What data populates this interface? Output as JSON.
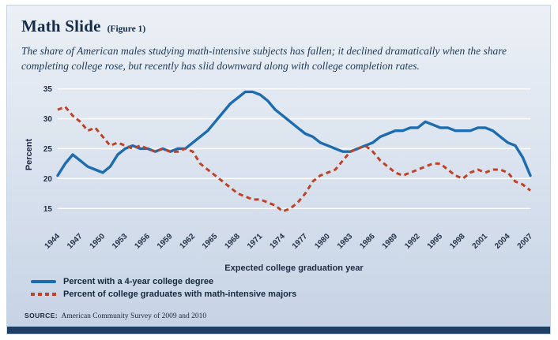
{
  "header": {
    "title": "Math Slide",
    "figure_label": "(Figure 1)",
    "subtitle": "The share of American males studying math-intensive subjects has fallen; it declined  dramatically when the share completing college rose, but recently has slid downward along with college completion rates."
  },
  "source": {
    "label": "SOURCE:",
    "text": "American Community Survey of 2009 and 2010"
  },
  "colors": {
    "degree_line": "#1e6cb0",
    "math_line": "#bf4226",
    "panel_top": "#ecf0f6",
    "panel_bottom": "#c6d3e5",
    "bottom_bar": "#1d3f66",
    "gridline": "#ffffff"
  },
  "chart_data": {
    "type": "line",
    "title": "Math Slide (Figure 1)",
    "xlabel": "Expected college graduation year",
    "ylabel": "Percent",
    "grid": "horizontal-white-lines",
    "legend_position": "bottom-left",
    "ylim": [
      12,
      36
    ],
    "yticks": [
      15,
      20,
      25,
      30,
      35
    ],
    "x_tick_labels": [
      "1944",
      "1947",
      "1950",
      "1953",
      "1956",
      "1959",
      "1962",
      "1965",
      "1968",
      "1971",
      "1974",
      "1977",
      "1980",
      "1983",
      "1986",
      "1989",
      "1992",
      "1995",
      "1998",
      "2001",
      "2004",
      "2007"
    ],
    "x": [
      1944,
      1945,
      1946,
      1947,
      1948,
      1949,
      1950,
      1951,
      1952,
      1953,
      1954,
      1955,
      1956,
      1957,
      1958,
      1959,
      1960,
      1961,
      1962,
      1963,
      1964,
      1965,
      1966,
      1967,
      1968,
      1969,
      1970,
      1971,
      1972,
      1973,
      1974,
      1975,
      1976,
      1977,
      1978,
      1979,
      1980,
      1981,
      1982,
      1983,
      1984,
      1985,
      1986,
      1987,
      1988,
      1989,
      1990,
      1991,
      1992,
      1993,
      1994,
      1995,
      1996,
      1997,
      1998,
      1999,
      2000,
      2001,
      2002,
      2003,
      2004,
      2005,
      2006,
      2007
    ],
    "series": [
      {
        "name": "Percent with a 4-year college degree",
        "color": "#1e6cb0",
        "style": "solid",
        "values": [
          20.5,
          22.5,
          24,
          23,
          22,
          21.5,
          21,
          22,
          24,
          25,
          25.5,
          25,
          25,
          24.5,
          25,
          24.5,
          25,
          25,
          26,
          27,
          28,
          29.5,
          31,
          32.5,
          33.5,
          34.5,
          34.5,
          34,
          33,
          31.5,
          30.5,
          29.5,
          28.5,
          27.5,
          27,
          26,
          25.5,
          25,
          24.5,
          24.5,
          25,
          25.5,
          26,
          27,
          27.5,
          28,
          28,
          28.5,
          28.5,
          29.5,
          29,
          28.5,
          28.5,
          28,
          28,
          28,
          28.5,
          28.5,
          28,
          27,
          26,
          25.5,
          23.5,
          20.5
        ]
      },
      {
        "name": "Percent of college graduates with math-intensive majors",
        "color": "#bf4226",
        "style": "dashed",
        "values": [
          31.5,
          32,
          30.5,
          29.5,
          28,
          28.5,
          27,
          25.5,
          26,
          25.5,
          25,
          25.5,
          25,
          24.5,
          25,
          24.5,
          24.5,
          25,
          24.5,
          22.5,
          21.5,
          20.5,
          19.5,
          18.5,
          17.5,
          17,
          16.5,
          16.5,
          16,
          15.5,
          14.5,
          15,
          16,
          17.5,
          19.5,
          20.5,
          21,
          21.5,
          23,
          24.5,
          25,
          25.5,
          24.5,
          23,
          22,
          21,
          20.5,
          21,
          21.5,
          22,
          22.5,
          22.5,
          21.5,
          20.5,
          20,
          21,
          21.5,
          21,
          21.5,
          21.5,
          21,
          19.5,
          19,
          18
        ]
      }
    ]
  }
}
